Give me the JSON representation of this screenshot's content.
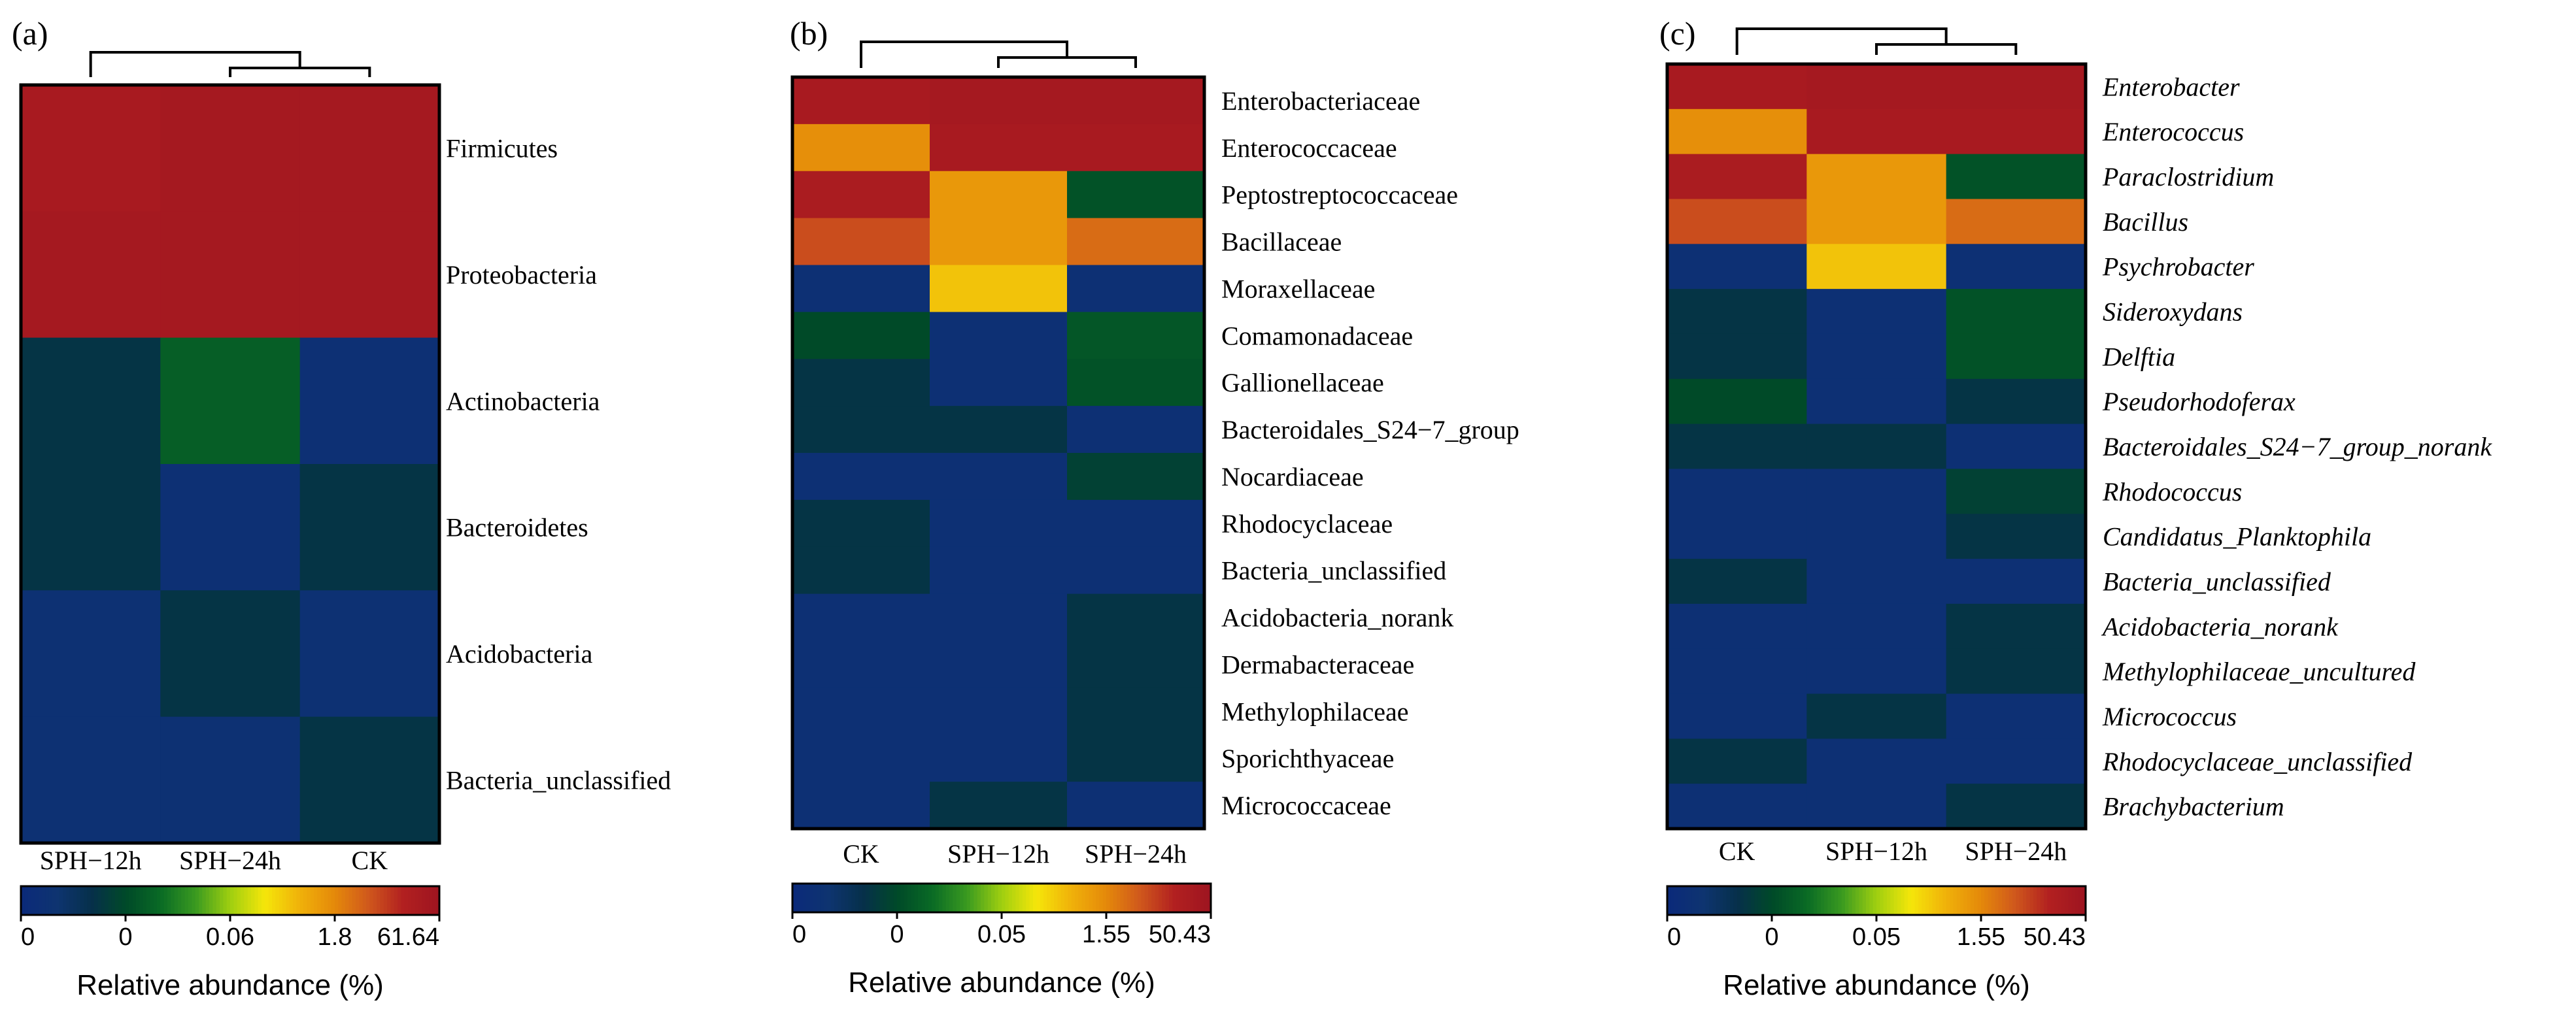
{
  "figure": {
    "panels": [
      "(a)",
      "(b)",
      "(c)"
    ],
    "colorbar_title": "Relative abundance (%)"
  },
  "colors": {
    "scale": [
      "#0b2a7a",
      "#0e3470",
      "#06304a",
      "#004a28",
      "#0a6b25",
      "#3a9a20",
      "#9fcf10",
      "#f5e60a",
      "#f0b20a",
      "#e58a0a",
      "#d0581c",
      "#b22020",
      "#9e1520"
    ]
  },
  "chart_data": [
    {
      "type": "heatmap",
      "panel": "(a)",
      "level": "phylum",
      "columns": [
        "SPH−12h",
        "SPH−24h",
        "CK"
      ],
      "rows": [
        "Firmicutes",
        "Proteobacteria",
        "Actinobacteria",
        "Bacteroidetes",
        "Acidobacteria",
        "Bacteria_unclassified"
      ],
      "color_index": [
        [
          0.96,
          0.97,
          0.97
        ],
        [
          0.97,
          0.97,
          0.97
        ],
        [
          0.18,
          0.3,
          0.05
        ],
        [
          0.18,
          0.05,
          0.18
        ],
        [
          0.06,
          0.18,
          0.06
        ],
        [
          0.06,
          0.06,
          0.18
        ]
      ],
      "colorbar_ticks": [
        "0",
        "0",
        "0.06",
        "1.8",
        "61.64"
      ],
      "colorbar_title": "Relative abundance (%)",
      "dendrogram": "CK and SPH−24h cluster first; SPH−12h joins last"
    },
    {
      "type": "heatmap",
      "panel": "(b)",
      "level": "family",
      "columns": [
        "CK",
        "SPH−12h",
        "SPH−24h"
      ],
      "rows": [
        "Enterobacteriaceae",
        "Enterococcaceae",
        "Peptostreptococcaceae",
        "Bacillaceae",
        "Moraxellaceae",
        "Comamonadaceae",
        "Gallionellaceae",
        "Bacteroidales_S24−7_group",
        "Nocardiaceae",
        "Rhodocyclaceae",
        "Bacteria_unclassified",
        "Acidobacteria_norank",
        "Dermabacteraceae",
        "Methylophilaceae",
        "Sporichthyaceae",
        "Micrococcaceae"
      ],
      "color_index": [
        [
          0.96,
          0.97,
          0.97
        ],
        [
          0.74,
          0.96,
          0.96
        ],
        [
          0.95,
          0.72,
          0.27
        ],
        [
          0.85,
          0.72,
          0.8
        ],
        [
          0.05,
          0.64,
          0.05
        ],
        [
          0.25,
          0.05,
          0.28
        ],
        [
          0.18,
          0.05,
          0.27
        ],
        [
          0.18,
          0.18,
          0.05
        ],
        [
          0.05,
          0.05,
          0.22
        ],
        [
          0.18,
          0.05,
          0.05
        ],
        [
          0.18,
          0.05,
          0.05
        ],
        [
          0.05,
          0.05,
          0.18
        ],
        [
          0.05,
          0.05,
          0.18
        ],
        [
          0.05,
          0.05,
          0.18
        ],
        [
          0.05,
          0.05,
          0.18
        ],
        [
          0.05,
          0.18,
          0.05
        ]
      ],
      "colorbar_ticks": [
        "0",
        "0",
        "0.05",
        "1.55",
        "50.43"
      ],
      "colorbar_title": "Relative abundance (%)",
      "dendrogram": "SPH−12h and SPH−24h cluster first; CK joins last"
    },
    {
      "type": "heatmap",
      "panel": "(c)",
      "level": "genus",
      "columns": [
        "CK",
        "SPH−12h",
        "SPH−24h"
      ],
      "rows": [
        "Enterobacter",
        "Enterococcus",
        "Paraclostridium",
        "Bacillus",
        "Psychrobacter",
        "Sideroxydans",
        "Delftia",
        "Pseudorhodoferax",
        "Bacteroidales_S24−7_group_norank",
        "Rhodococcus",
        "Candidatus_Planktophila",
        "Bacteria_unclassified",
        "Acidobacteria_norank",
        "Methylophilaceae_uncultured",
        "Micrococcus",
        "Rhodocyclaceae_unclassified",
        "Brachybacterium"
      ],
      "color_index": [
        [
          0.96,
          0.97,
          0.97
        ],
        [
          0.74,
          0.96,
          0.96
        ],
        [
          0.95,
          0.72,
          0.27
        ],
        [
          0.85,
          0.72,
          0.8
        ],
        [
          0.05,
          0.64,
          0.05
        ],
        [
          0.18,
          0.05,
          0.27
        ],
        [
          0.18,
          0.05,
          0.27
        ],
        [
          0.25,
          0.05,
          0.18
        ],
        [
          0.18,
          0.18,
          0.05
        ],
        [
          0.05,
          0.05,
          0.22
        ],
        [
          0.05,
          0.05,
          0.18
        ],
        [
          0.18,
          0.05,
          0.05
        ],
        [
          0.05,
          0.05,
          0.18
        ],
        [
          0.05,
          0.05,
          0.18
        ],
        [
          0.05,
          0.18,
          0.05
        ],
        [
          0.18,
          0.05,
          0.05
        ],
        [
          0.05,
          0.05,
          0.18
        ]
      ],
      "colorbar_ticks": [
        "0",
        "0",
        "0.05",
        "1.55",
        "50.43"
      ],
      "colorbar_title": "Relative abundance (%)",
      "dendrogram": "SPH−12h and SPH−24h cluster first; CK joins last"
    }
  ]
}
